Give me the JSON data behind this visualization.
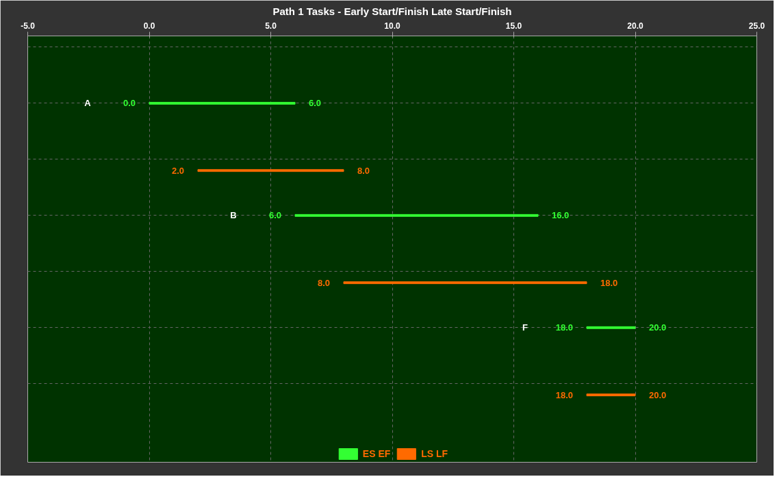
{
  "chart_data": {
    "type": "bar",
    "orientation": "horizontal",
    "title": "Path 1 Tasks - Early Start/Finish Late Start/Finish",
    "categories": [
      "A",
      "B",
      "F"
    ],
    "series": [
      {
        "name": "ES EF",
        "color": "#33ff33",
        "base": [
          0,
          6,
          18
        ],
        "values": [
          6,
          10,
          2
        ],
        "value_labels": [
          "6.0",
          "16.0",
          "20.0"
        ]
      },
      {
        "name": "LS LF",
        "color": "#ff6a00",
        "base": [
          2,
          8,
          18
        ],
        "values": [
          6,
          10,
          2
        ],
        "value_labels": [
          "8.0",
          "18.0",
          "20.0"
        ]
      }
    ],
    "annotations": [
      "0.0",
      "6.0",
      "18.0",
      "2.0",
      "8.0",
      "18.0"
    ],
    "xlim": [
      -5,
      25
    ],
    "xticks": [
      {
        "value": -5,
        "label": "-5.0"
      },
      {
        "value": 0,
        "label": "0.0"
      },
      {
        "value": 5,
        "label": "5.0"
      },
      {
        "value": 10,
        "label": "10.0"
      },
      {
        "value": 15,
        "label": "15.0"
      },
      {
        "value": 20,
        "label": "20.0"
      },
      {
        "value": 25,
        "label": "25.0"
      }
    ],
    "tick_labels": "x",
    "grid": true,
    "legend": "bottom"
  }
}
